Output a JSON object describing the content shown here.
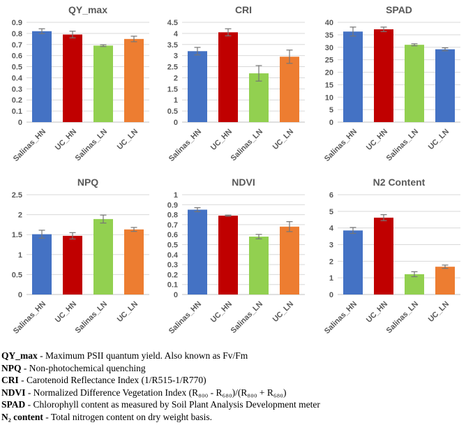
{
  "figure": {
    "background": "#ffffff"
  },
  "colors": {
    "blue": "#4472C4",
    "red": "#C00000",
    "green": "#92D050",
    "orange": "#ED7D31",
    "grid": "#D9D9D9",
    "axis": "#BFBFBF",
    "error": "#767676",
    "label_text": "#595959"
  },
  "chart_data": [
    {
      "type": "bar",
      "title": "QY_max",
      "categories": [
        "Salinas_HN",
        "UC_HN",
        "Salinas_LN",
        "UC_LN"
      ],
      "values": [
        0.82,
        0.79,
        0.69,
        0.75
      ],
      "errors": [
        0.022,
        0.03,
        0.008,
        0.025
      ],
      "bar_colors": [
        "blue",
        "red",
        "green",
        "orange"
      ],
      "ylim": [
        0,
        0.9
      ],
      "yticks": [
        "0",
        "0.1",
        "0.2",
        "0.3",
        "0.4",
        "0.5",
        "0.6",
        "0.7",
        "0.8",
        "0.9"
      ],
      "legend": "none",
      "grid": "horizontal"
    },
    {
      "type": "bar",
      "title": "CRI",
      "categories": [
        "Salinas_HN",
        "UC_HN",
        "Salinas_LN",
        "UC_LN"
      ],
      "values": [
        3.2,
        4.05,
        2.2,
        2.95
      ],
      "errors": [
        0.17,
        0.16,
        0.35,
        0.3
      ],
      "bar_colors": [
        "blue",
        "red",
        "green",
        "orange"
      ],
      "ylim": [
        0,
        4.5
      ],
      "yticks": [
        "0",
        "0.5",
        "1",
        "1.5",
        "2",
        "2.5",
        "3",
        "3.5",
        "4",
        "4.5"
      ],
      "legend": "none",
      "grid": "horizontal"
    },
    {
      "type": "bar",
      "title": "SPAD",
      "categories": [
        "Salinas_HN",
        "UC_HN",
        "Salinas_LN",
        "UC_LN"
      ],
      "values": [
        36.3,
        37.2,
        31.0,
        29.2
      ],
      "errors": [
        1.8,
        0.9,
        0.4,
        0.6
      ],
      "bar_colors": [
        "blue",
        "red",
        "green",
        "blue"
      ],
      "ylim": [
        0,
        40
      ],
      "yticks": [
        "0",
        "5",
        "10",
        "15",
        "20",
        "25",
        "30",
        "35",
        "40"
      ],
      "legend": "none",
      "grid": "horizontal"
    },
    {
      "type": "bar",
      "title": "NPQ",
      "categories": [
        "Salinas_HN",
        "UC_HN",
        "Salinas_LN",
        "UC_LN"
      ],
      "values": [
        1.51,
        1.47,
        1.89,
        1.63
      ],
      "errors": [
        0.1,
        0.08,
        0.1,
        0.05
      ],
      "bar_colors": [
        "blue",
        "red",
        "green",
        "orange"
      ],
      "ylim": [
        0,
        2.5
      ],
      "yticks": [
        "0",
        "0.5",
        "1",
        "1.5",
        "2",
        "2.5"
      ],
      "legend": "none",
      "grid": "horizontal"
    },
    {
      "type": "bar",
      "title": "NDVI",
      "categories": [
        "Salinas_HN",
        "UC_HN",
        "Salinas_LN",
        "UC_LN"
      ],
      "values": [
        0.85,
        0.79,
        0.58,
        0.68
      ],
      "errors": [
        0.02,
        0.005,
        0.022,
        0.05
      ],
      "bar_colors": [
        "blue",
        "red",
        "green",
        "orange"
      ],
      "ylim": [
        0,
        1
      ],
      "yticks": [
        "0",
        "0.1",
        "0.2",
        "0.3",
        "0.4",
        "0.5",
        "0.6",
        "0.7",
        "0.8",
        "0.9",
        "1"
      ],
      "legend": "none",
      "grid": "horizontal"
    },
    {
      "type": "bar",
      "title": "N2 Content",
      "categories": [
        "Salinas_HN",
        "UC_HN",
        "Salinas_LN",
        "UC_LN"
      ],
      "values": [
        3.85,
        4.62,
        1.22,
        1.67
      ],
      "errors": [
        0.18,
        0.18,
        0.15,
        0.1
      ],
      "bar_colors": [
        "blue",
        "red",
        "green",
        "orange"
      ],
      "ylim": [
        0,
        6
      ],
      "yticks": [
        "0",
        "1",
        "2",
        "3",
        "4",
        "5",
        "6"
      ],
      "legend": "none",
      "grid": "horizontal"
    }
  ],
  "caption": {
    "lines": [
      {
        "term": "QY_max",
        "desc": " - Maximum PSII quantum yield. Also known as Fv/Fm"
      },
      {
        "term": "NPQ",
        "desc": " - Non-photochemical quenching"
      },
      {
        "term": "CRI",
        "desc": " - Carotenoid Reflectance Index (1/R515-1/R770)"
      },
      {
        "term": "NDVI",
        "desc": " - Normalized Difference Vegetation Index (R₈₀₀ - R₆₈₀)/(R₈₀₀ + R₆₈₀)"
      },
      {
        "term": "SPAD",
        "desc": " - Chlorophyll content as measured by Soil Plant Analysis Development meter"
      },
      {
        "term": "N₂ content",
        "desc": " - Total nitrogen content on dry weight basis."
      }
    ]
  }
}
